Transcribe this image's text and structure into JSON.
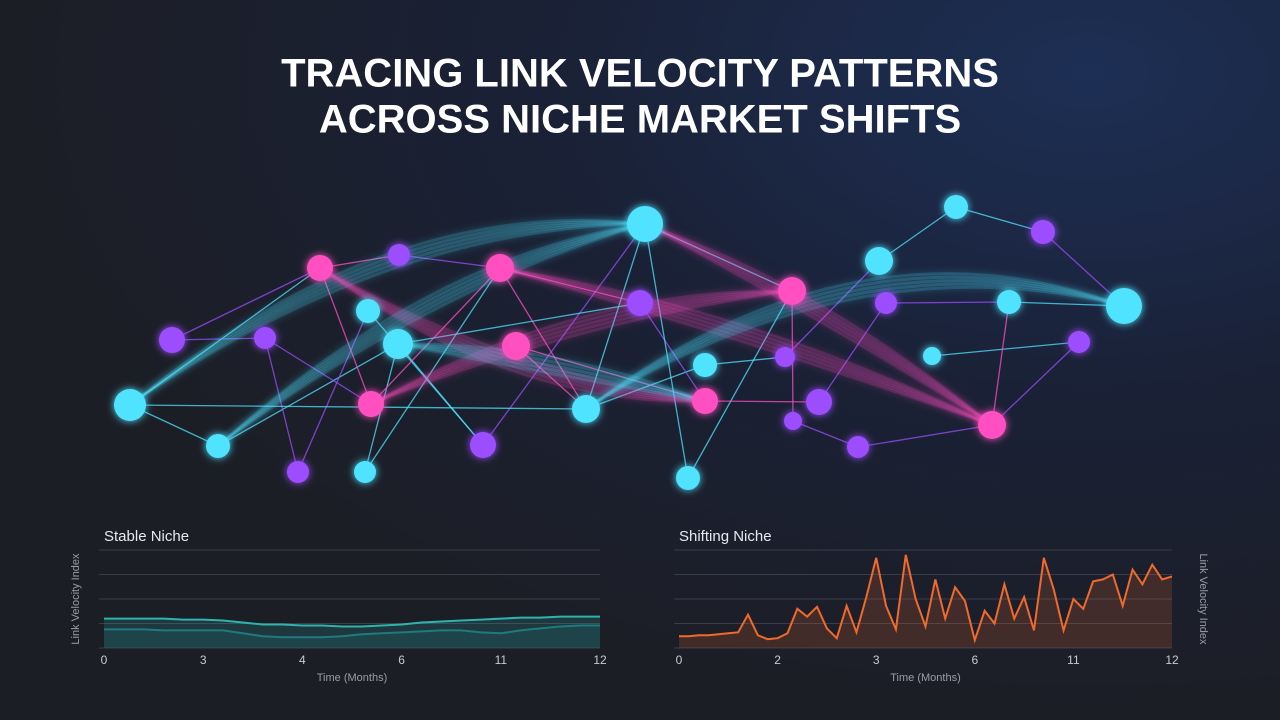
{
  "title": [
    "TRACING LINK VELOCITY PATTERNS",
    "ACROSS NICHE MARKET SHIFTS"
  ],
  "chart_data": [
    {
      "type": "line",
      "title": "Stable Niche",
      "x_label": "Time (Months)",
      "y_label": "Link Velocity Index",
      "categories": [
        "0",
        null,
        null,
        null,
        null,
        "3",
        null,
        null,
        null,
        null,
        "4",
        null,
        null,
        null,
        null,
        "6",
        null,
        null,
        null,
        null,
        "11",
        null,
        null,
        null,
        null,
        "12"
      ],
      "ylim": [
        0,
        10
      ],
      "yticks": [
        0,
        2.5,
        5,
        7.5,
        10
      ],
      "grid": true,
      "area": true,
      "series": [
        {
          "color": "#2fb3ad",
          "values": [
            3.0,
            3.0,
            3.0,
            3.0,
            2.9,
            2.9,
            2.8,
            2.6,
            2.4,
            2.4,
            2.3,
            2.3,
            2.2,
            2.2,
            2.3,
            2.4,
            2.6,
            2.7,
            2.8,
            2.9,
            3.0,
            3.1,
            3.1,
            3.2,
            3.2,
            3.2
          ]
        },
        {
          "color": "#1f7a80",
          "values": [
            1.9,
            1.9,
            1.9,
            1.8,
            1.8,
            1.8,
            1.8,
            1.5,
            1.2,
            1.1,
            1.1,
            1.1,
            1.2,
            1.4,
            1.5,
            1.6,
            1.7,
            1.8,
            1.8,
            1.6,
            1.5,
            1.8,
            2.0,
            2.2,
            2.3,
            2.3
          ]
        }
      ]
    },
    {
      "type": "line",
      "title": "Shifting Niche",
      "x_label": "Time (Months)",
      "y_label": "Link Velocity Index",
      "categories": [
        "0",
        null,
        null,
        null,
        null,
        null,
        null,
        null,
        null,
        null,
        "2",
        null,
        null,
        null,
        null,
        null,
        null,
        null,
        null,
        null,
        "3",
        null,
        null,
        null,
        null,
        null,
        null,
        null,
        null,
        null,
        "6",
        null,
        null,
        null,
        null,
        null,
        null,
        null,
        null,
        null,
        "11",
        null,
        null,
        null,
        null,
        null,
        null,
        null,
        null,
        null,
        "12"
      ],
      "ylim": [
        0,
        10
      ],
      "yticks": [
        0,
        2.5,
        5,
        7.5,
        10
      ],
      "grid": true,
      "area": true,
      "series": [
        {
          "color": "#f06a2c",
          "values": [
            1.2,
            1.2,
            1.3,
            1.3,
            1.4,
            1.5,
            1.6,
            3.4,
            1.3,
            0.9,
            1.0,
            1.5,
            4.0,
            3.2,
            4.2,
            2.0,
            1.0,
            4.3,
            1.6,
            5.2,
            9.2,
            4.3,
            1.9,
            9.5,
            5.0,
            2.2,
            7.0,
            3.0,
            6.2,
            4.8,
            0.8,
            3.8,
            2.5,
            6.5,
            3.0,
            5.2,
            1.8,
            9.2,
            6.0,
            1.8,
            5.0,
            4.0,
            6.8,
            7.0,
            7.5,
            4.3,
            8.0,
            6.5,
            8.5,
            7.0,
            7.3
          ]
        }
      ]
    }
  ]
}
